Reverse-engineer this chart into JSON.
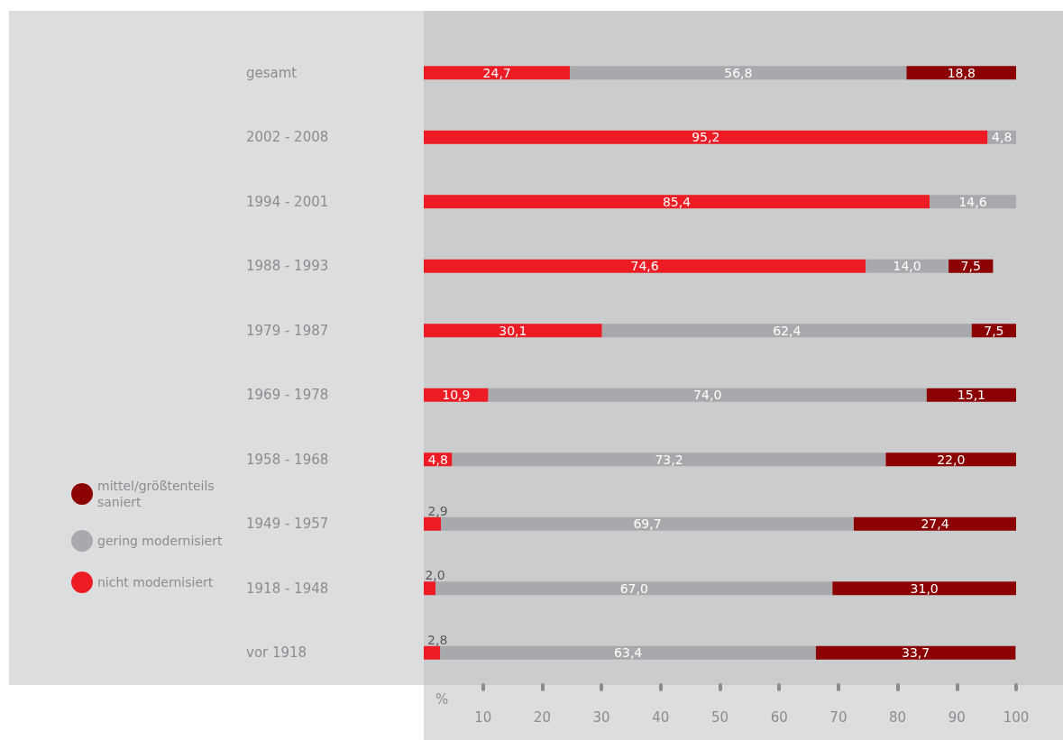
{
  "chart_data": {
    "type": "bar",
    "orientation": "horizontal",
    "stacked": true,
    "categories": [
      "gesamt",
      "2002 - 2008",
      "1994 - 2001",
      "1988 - 1993",
      "1979 - 1987",
      "1969 - 1978",
      "1958 - 1968",
      "1949 - 1957",
      "1918 - 1948",
      "vor 1918"
    ],
    "series": [
      {
        "name": "nicht modernisiert",
        "color": "#ed1c24",
        "values": [
          24.7,
          95.2,
          85.4,
          74.6,
          30.1,
          10.9,
          4.8,
          2.9,
          2.0,
          2.8
        ],
        "value_labels": [
          "24,7",
          "95,2",
          "85,4",
          "74,6",
          "30,1",
          "10,9",
          "4,8",
          "2,9",
          "2,0",
          "2,8"
        ]
      },
      {
        "name": "gering modernisiert",
        "color": "#a7a9ac",
        "values": [
          56.8,
          4.8,
          14.6,
          14.0,
          62.4,
          74.0,
          73.2,
          69.7,
          67.0,
          63.4
        ],
        "value_labels": [
          "56,8",
          "4,8",
          "14,6",
          "14,0",
          "62,4",
          "74,0",
          "73,2",
          "69,7",
          "67,0",
          "63,4"
        ]
      },
      {
        "name": "mittel/größtenteils saniert",
        "color": "#8b0000",
        "values": [
          18.8,
          null,
          null,
          7.5,
          7.5,
          15.1,
          22.0,
          27.4,
          31.0,
          33.7
        ],
        "value_labels": [
          "18,8",
          null,
          null,
          "7,5",
          "7,5",
          "15,1",
          "22,0",
          "27,4",
          "31,0",
          "33,7"
        ]
      }
    ],
    "xlabel": "%",
    "xlim": [
      0,
      100
    ],
    "xticks": [
      10,
      20,
      30,
      40,
      50,
      60,
      70,
      80,
      90,
      100
    ],
    "grid": false,
    "legend": "bottom left"
  }
}
